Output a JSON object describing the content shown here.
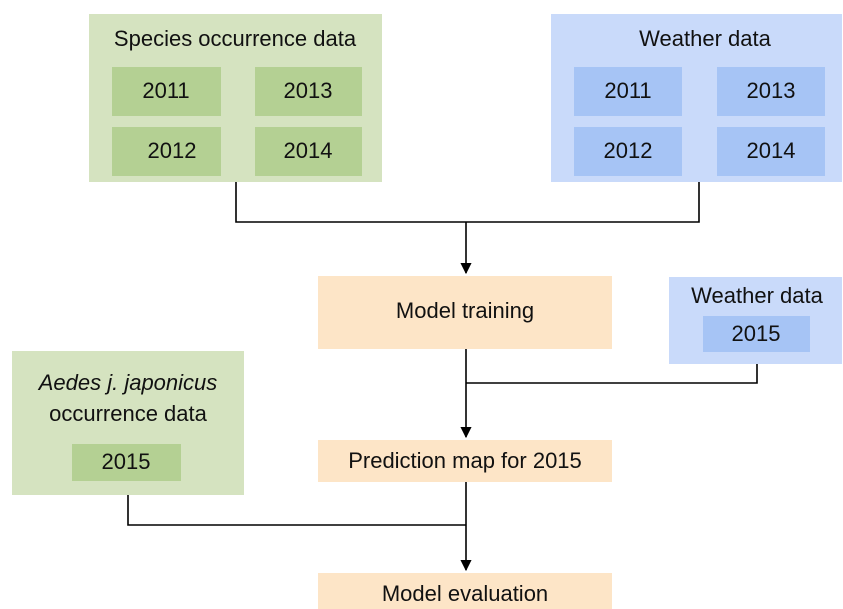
{
  "species_data": {
    "title": "Species occurrence data",
    "years": [
      "2011",
      "2013",
      "2012",
      "2014"
    ]
  },
  "weather_data": {
    "title": "Weather data",
    "years": [
      "2011",
      "2013",
      "2012",
      "2014"
    ]
  },
  "model_training": "Model training",
  "weather_2015": {
    "title": "Weather data",
    "year": "2015"
  },
  "aedes_data": {
    "title_italic": "Aedes j. japonicus",
    "title": "occurrence data",
    "year": "2015"
  },
  "prediction_map": "Prediction map for 2015",
  "model_evaluation": "Model evaluation"
}
